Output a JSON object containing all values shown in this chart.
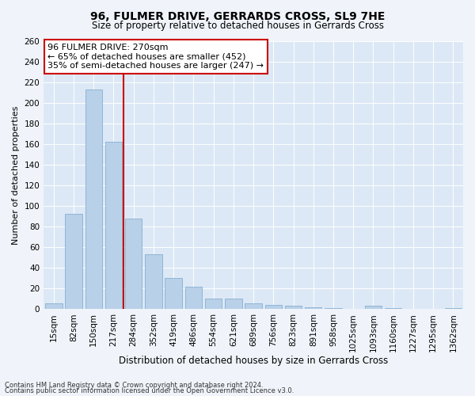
{
  "title": "96, FULMER DRIVE, GERRARDS CROSS, SL9 7HE",
  "subtitle": "Size of property relative to detached houses in Gerrards Cross",
  "xlabel": "Distribution of detached houses by size in Gerrards Cross",
  "ylabel": "Number of detached properties",
  "categories": [
    "15sqm",
    "82sqm",
    "150sqm",
    "217sqm",
    "284sqm",
    "352sqm",
    "419sqm",
    "486sqm",
    "554sqm",
    "621sqm",
    "689sqm",
    "756sqm",
    "823sqm",
    "891sqm",
    "958sqm",
    "1025sqm",
    "1093sqm",
    "1160sqm",
    "1227sqm",
    "1295sqm",
    "1362sqm"
  ],
  "values": [
    6,
    92,
    213,
    162,
    88,
    53,
    30,
    22,
    10,
    10,
    6,
    4,
    3,
    2,
    1,
    0,
    3,
    1,
    0,
    0,
    1
  ],
  "bar_color": "#b8d0e8",
  "bar_edge_color": "#7aa8cc",
  "vline_x": 3.5,
  "vline_color": "#cc0000",
  "ylim": [
    0,
    260
  ],
  "yticks": [
    0,
    20,
    40,
    60,
    80,
    100,
    120,
    140,
    160,
    180,
    200,
    220,
    240,
    260
  ],
  "annotation_text": "96 FULMER DRIVE: 270sqm\n← 65% of detached houses are smaller (452)\n35% of semi-detached houses are larger (247) →",
  "annotation_box_color": "#ffffff",
  "annotation_box_edge": "#cc0000",
  "footer_line1": "Contains HM Land Registry data © Crown copyright and database right 2024.",
  "footer_line2": "Contains public sector information licensed under the Open Government Licence v3.0.",
  "bg_color": "#f0f4fa",
  "plot_bg_color": "#dce8f5",
  "title_fontsize": 10,
  "subtitle_fontsize": 8.5,
  "xlabel_fontsize": 8.5,
  "ylabel_fontsize": 8,
  "tick_fontsize": 7.5,
  "ann_fontsize": 8
}
